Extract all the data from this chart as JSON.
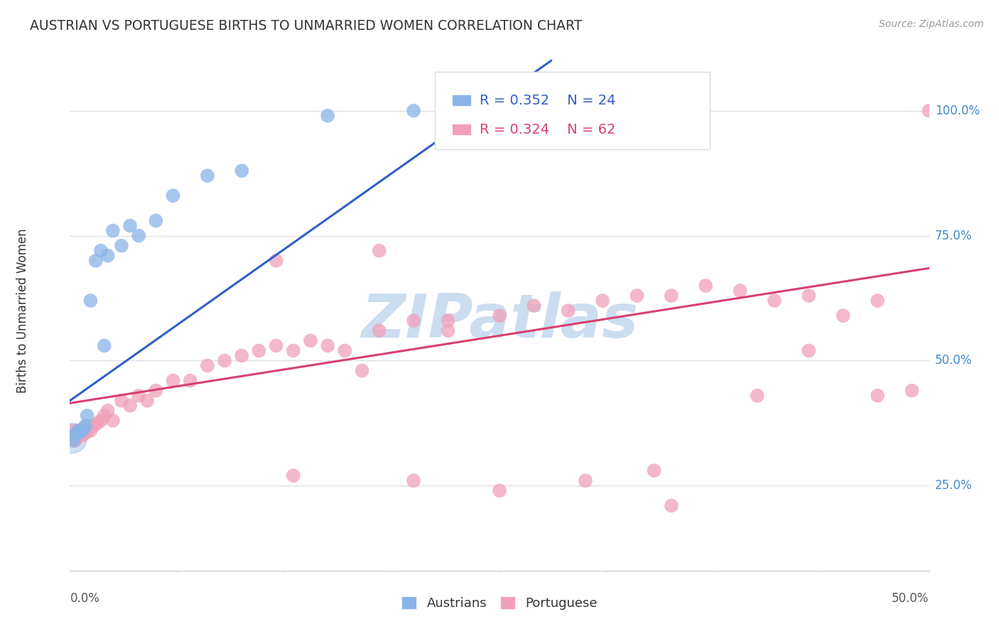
{
  "title": "AUSTRIAN VS PORTUGUESE BIRTHS TO UNMARRIED WOMEN CORRELATION CHART",
  "source": "Source: ZipAtlas.com",
  "ylabel": "Births to Unmarried Women",
  "y_ticks": [
    0.25,
    0.5,
    0.75,
    1.0
  ],
  "y_tick_labels": [
    "25.0%",
    "50.0%",
    "75.0%",
    "100.0%"
  ],
  "x_lim": [
    0.0,
    0.5
  ],
  "y_lim": [
    0.08,
    1.12
  ],
  "austrians_color": "#8ab4e8",
  "portuguese_color": "#f0a0b8",
  "austrians_line_color": "#3060c8",
  "portuguese_line_color": "#d84070",
  "watermark": "ZIPatlas",
  "watermark_color": "#ccddf0",
  "background_color": "#ffffff",
  "grid_color": "#e0e0e8",
  "aust_x": [
    0.002,
    0.003,
    0.004,
    0.005,
    0.006,
    0.007,
    0.008,
    0.009,
    0.01,
    0.012,
    0.015,
    0.018,
    0.02,
    0.022,
    0.025,
    0.03,
    0.035,
    0.04,
    0.05,
    0.06,
    0.08,
    0.1,
    0.15,
    0.2
  ],
  "aust_y": [
    0.34,
    0.35,
    0.355,
    0.36,
    0.358,
    0.36,
    0.365,
    0.37,
    0.39,
    0.62,
    0.7,
    0.72,
    0.53,
    0.71,
    0.76,
    0.73,
    0.77,
    0.75,
    0.78,
    0.83,
    0.87,
    0.88,
    0.99,
    1.0
  ],
  "port_x": [
    0.002,
    0.003,
    0.004,
    0.005,
    0.006,
    0.007,
    0.008,
    0.009,
    0.01,
    0.012,
    0.014,
    0.016,
    0.018,
    0.02,
    0.022,
    0.025,
    0.03,
    0.035,
    0.04,
    0.045,
    0.05,
    0.06,
    0.07,
    0.08,
    0.09,
    0.1,
    0.11,
    0.12,
    0.13,
    0.14,
    0.15,
    0.16,
    0.17,
    0.18,
    0.2,
    0.22,
    0.25,
    0.27,
    0.29,
    0.31,
    0.33,
    0.35,
    0.37,
    0.39,
    0.41,
    0.43,
    0.45,
    0.47,
    0.49,
    0.5,
    0.13,
    0.2,
    0.25,
    0.3,
    0.35,
    0.4,
    0.12,
    0.18,
    0.22,
    0.43,
    0.47,
    0.34
  ],
  "port_y": [
    0.36,
    0.34,
    0.345,
    0.35,
    0.36,
    0.35,
    0.36,
    0.355,
    0.36,
    0.36,
    0.37,
    0.375,
    0.38,
    0.39,
    0.4,
    0.38,
    0.42,
    0.41,
    0.43,
    0.42,
    0.44,
    0.46,
    0.46,
    0.49,
    0.5,
    0.51,
    0.52,
    0.53,
    0.52,
    0.54,
    0.53,
    0.52,
    0.48,
    0.56,
    0.58,
    0.58,
    0.59,
    0.61,
    0.6,
    0.62,
    0.63,
    0.63,
    0.65,
    0.64,
    0.62,
    0.63,
    0.59,
    0.62,
    0.44,
    1.0,
    0.27,
    0.26,
    0.24,
    0.26,
    0.21,
    0.43,
    0.7,
    0.72,
    0.56,
    0.52,
    0.43,
    0.28
  ],
  "aust_line_x": [
    0.0,
    0.28
  ],
  "aust_line_y": [
    0.42,
    1.1
  ],
  "port_line_x": [
    0.0,
    0.5
  ],
  "port_line_y": [
    0.415,
    0.685
  ]
}
